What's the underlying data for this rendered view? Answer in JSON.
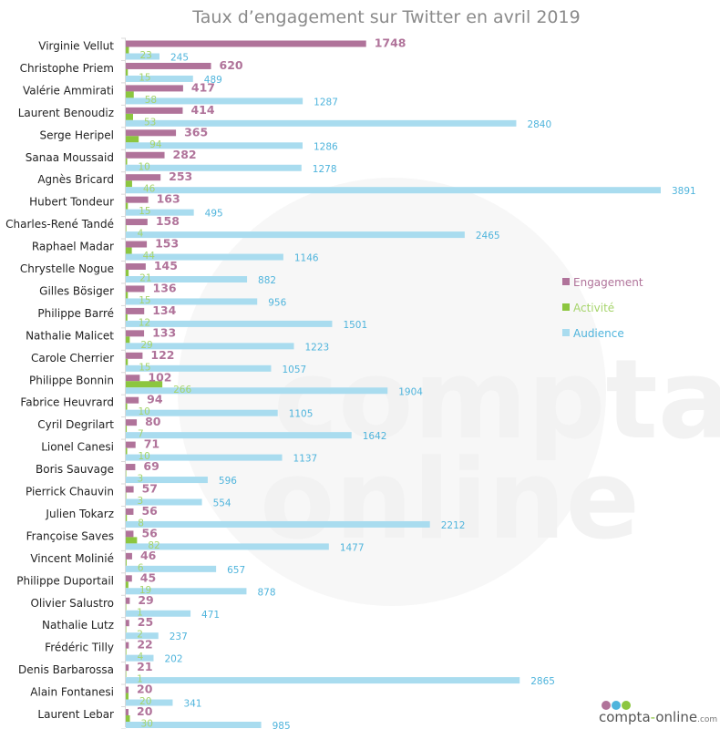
{
  "colors": {
    "engagement": "#b0739a",
    "activite": "#8cc63f",
    "audience": "#a9dcef",
    "audience_label": "#4fb4dc",
    "activite_label": "#a6d46b"
  },
  "watermark": {
    "line1": "compta",
    "line2": "online"
  },
  "logo": {
    "name": "compta",
    "dash": "-",
    "name2": "online",
    "suffix": ".com",
    "dot_colors": [
      "#b0739a",
      "#4fb4dc",
      "#8cc63f"
    ]
  },
  "chart_data": {
    "type": "bar",
    "orientation": "horizontal",
    "title": "Taux d’engagement sur Twitter en avril 2019",
    "xlabel": "",
    "ylabel": "",
    "xlim": [
      0,
      4000
    ],
    "grid": false,
    "legend_position": "right",
    "categories": [
      "Virginie Vellut",
      "Christophe Priem",
      "Valérie Ammirati",
      "Laurent Benoudiz",
      "Serge Heripel",
      "Sanaa Moussaid",
      "Agnès Bricard",
      "Hubert Tondeur",
      "Charles-René Tandé",
      "Raphael Madar",
      "Chrystelle Nogue",
      "Gilles Bösiger",
      "Philippe Barré",
      "Nathalie Malicet",
      "Carole Cherrier",
      "Philippe Bonnin",
      "Fabrice Heuvrard",
      "Cyril Degrilart",
      "Lionel Canesi",
      "Boris Sauvage",
      "Pierrick Chauvin",
      "Julien Tokarz",
      "Françoise Saves",
      "Vincent Molinié",
      "Philippe Duportail",
      "Olivier Salustro",
      "Nathalie Lutz",
      "Frédéric Tilly",
      "Denis Barbarossa",
      "Alain Fontanesi",
      "Laurent Lebar"
    ],
    "series": [
      {
        "name": "Engagement",
        "values": [
          1748,
          620,
          417,
          414,
          365,
          282,
          253,
          163,
          158,
          153,
          145,
          136,
          134,
          133,
          122,
          102,
          94,
          80,
          71,
          69,
          57,
          56,
          56,
          46,
          45,
          29,
          25,
          22,
          21,
          20,
          20
        ]
      },
      {
        "name": "Activité",
        "values": [
          23,
          15,
          58,
          53,
          94,
          10,
          46,
          15,
          4,
          44,
          21,
          15,
          12,
          29,
          15,
          266,
          10,
          7,
          10,
          3,
          3,
          8,
          82,
          6,
          19,
          1,
          2,
          4,
          1,
          20,
          30
        ]
      },
      {
        "name": "Audience",
        "values": [
          245,
          489,
          1287,
          2840,
          1286,
          1278,
          3891,
          495,
          2465,
          1146,
          882,
          956,
          1501,
          1223,
          1057,
          1904,
          1105,
          1642,
          1137,
          596,
          554,
          2212,
          1477,
          657,
          878,
          471,
          237,
          202,
          2865,
          341,
          985
        ]
      }
    ]
  }
}
